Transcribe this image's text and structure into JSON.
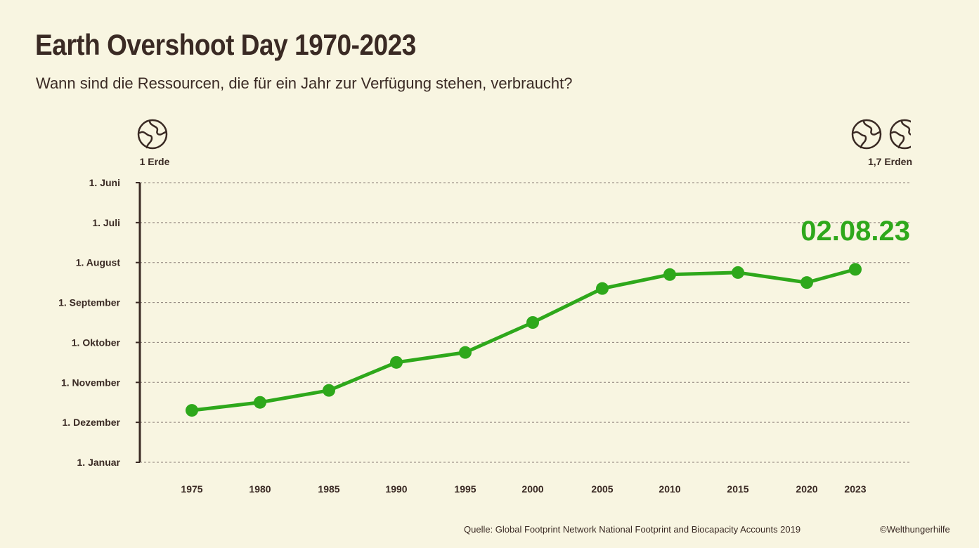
{
  "header": {
    "title": "Earth Overshoot Day 1970-2023",
    "subtitle": "Wann sind die Ressourcen, die für ein Jahr zur Verfügung stehen, verbraucht?"
  },
  "earths": {
    "left_label": "1 Erde",
    "right_label": "1,7 Erden",
    "icon": "globe-icon"
  },
  "callout": "02.08.23",
  "footer": {
    "source": "Quelle: Global Footprint Network National Footprint and Biocapacity Accounts 2019",
    "copyright": "©Welthungerhilfe"
  },
  "colors": {
    "background": "#f8f5e1",
    "line": "#2ea81b",
    "text": "#3a2a24",
    "grid": "#8a7f78"
  },
  "chart_data": {
    "type": "line",
    "title": "Earth Overshoot Day 1970-2023",
    "subtitle": "Wann sind die Ressourcen, die für ein Jahr zur Verfügung stehen, verbraucht?",
    "x_tick_labels": [
      "1975",
      "1980",
      "1985",
      "1990",
      "1995",
      "2000",
      "2005",
      "2010",
      "2015",
      "2020",
      "2023"
    ],
    "y_tick_labels": [
      "1. Juni",
      "1. Juli",
      "1. August",
      "1. September",
      "1. Oktober",
      "1. November",
      "1. Dezember",
      "1. Januar"
    ],
    "y_axis_note": "months until Earth Overshoot Day, from 1. Januar (0) to 1. Juni (7)",
    "ylim": [
      0,
      7
    ],
    "grid": true,
    "series": [
      {
        "values": [
          1.3,
          1.5,
          1.8,
          2.5,
          2.75,
          3.5,
          4.35,
          4.7,
          4.75,
          4.5,
          4.83
        ]
      }
    ]
  }
}
